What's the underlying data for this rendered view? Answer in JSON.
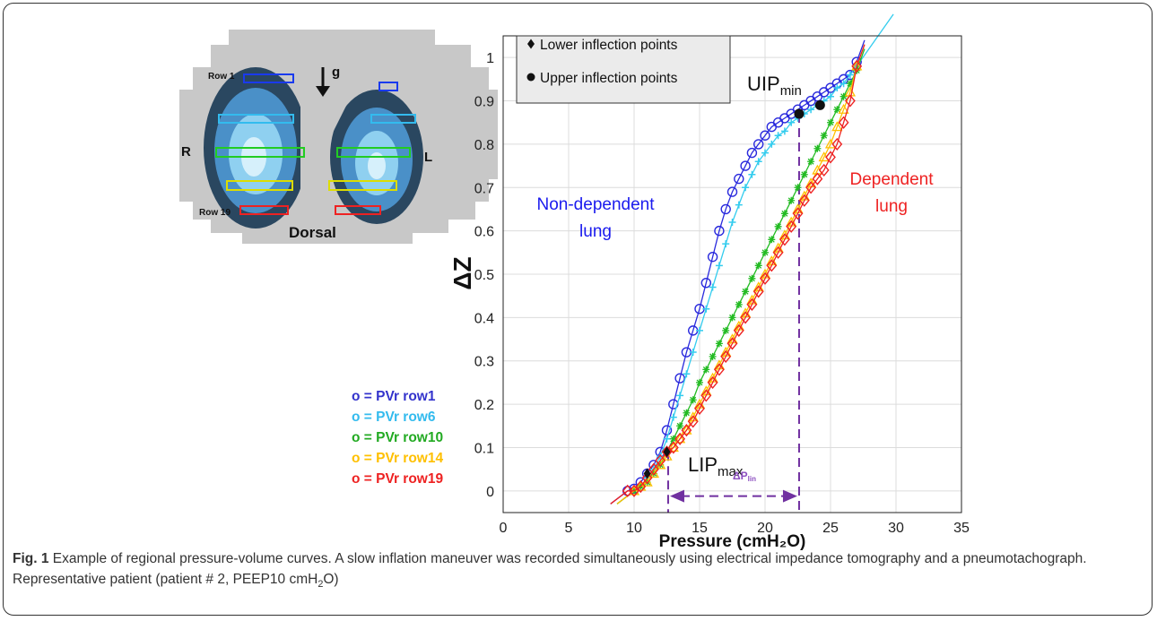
{
  "figure": {
    "caption_label": "Fig. 1",
    "caption_text": "Example of regional pressure-volume curves. A slow inflation maneuver was recorded simultaneously using electrical impedance tomography and a pneumotachograph. Representative patient (patient # 2, PEEP10 cmH",
    "caption_sub": "2",
    "caption_end": "O)"
  },
  "eit_image": {
    "label_row1": "Row 1",
    "label_row19": "Row 19",
    "label_gravity": "g",
    "label_right": "R",
    "label_left": "L",
    "label_dorsal": "Dorsal"
  },
  "legend_rows": [
    {
      "text": "o = PVr row1",
      "color": "#3333cc"
    },
    {
      "text": "o = PVr row6",
      "color": "#33bbee"
    },
    {
      "text": "o = PVr row10",
      "color": "#22aa22"
    },
    {
      "text": "o = PVr row14",
      "color": "#ffc000"
    },
    {
      "text": "o = PVr row19",
      "color": "#ee2222"
    }
  ],
  "chart_data": {
    "type": "scatter",
    "xlabel": "Pressure (cmH₂O)",
    "ylabel": "ΔZ",
    "xlim": [
      0,
      35
    ],
    "ylim": [
      -0.05,
      1.05
    ],
    "xticks": [
      "0",
      "5",
      "10",
      "15",
      "20",
      "25",
      "30",
      "35"
    ],
    "yticks": [
      "0",
      "0.1",
      "0.2",
      "0.3",
      "0.4",
      "0.5",
      "0.6",
      "0.7",
      "0.8",
      "0.9",
      "1"
    ],
    "grid": true,
    "legend": {
      "placement": "top-left",
      "entries": [
        "Lower inflection points",
        "Upper inflection points"
      ]
    },
    "series": [
      {
        "name": "PVr row1",
        "color": "#2a2add",
        "marker": "circle",
        "x": [
          9.5,
          10,
          10.5,
          11,
          11.5,
          12,
          12.5,
          13,
          13.5,
          14,
          14.5,
          15,
          15.5,
          16,
          16.5,
          17,
          17.5,
          18,
          18.5,
          19,
          19.5,
          20,
          20.5,
          21,
          21.5,
          22,
          22.5,
          23,
          23.5,
          24,
          24.5,
          25,
          25.5,
          26,
          26.5,
          27
        ],
        "y": [
          0,
          0.005,
          0.02,
          0.04,
          0.06,
          0.09,
          0.14,
          0.2,
          0.26,
          0.32,
          0.37,
          0.42,
          0.48,
          0.54,
          0.6,
          0.65,
          0.69,
          0.72,
          0.75,
          0.78,
          0.8,
          0.82,
          0.84,
          0.85,
          0.86,
          0.87,
          0.88,
          0.89,
          0.9,
          0.91,
          0.92,
          0.93,
          0.94,
          0.95,
          0.96,
          0.99
        ]
      },
      {
        "name": "PVr row6",
        "color": "#33ccee",
        "marker": "plus",
        "x": [
          10,
          10.5,
          11,
          11.5,
          12,
          12.5,
          13,
          13.5,
          14,
          14.5,
          15,
          15.5,
          16,
          16.5,
          17,
          17.5,
          18,
          18.5,
          19,
          19.5,
          20,
          20.5,
          21,
          21.5,
          22,
          22.5,
          23,
          23.5,
          24,
          24.5,
          25,
          25.5,
          26,
          26.5,
          27
        ],
        "y": [
          0,
          0.01,
          0.03,
          0.05,
          0.08,
          0.12,
          0.17,
          0.22,
          0.27,
          0.32,
          0.37,
          0.42,
          0.47,
          0.52,
          0.57,
          0.62,
          0.66,
          0.7,
          0.73,
          0.76,
          0.78,
          0.8,
          0.82,
          0.83,
          0.85,
          0.86,
          0.87,
          0.88,
          0.89,
          0.9,
          0.91,
          0.93,
          0.94,
          0.96,
          0.98
        ]
      },
      {
        "name": "PVr row10",
        "color": "#22bb22",
        "marker": "asterisk",
        "x": [
          10,
          10.5,
          11,
          11.5,
          12,
          12.5,
          13,
          13.5,
          14,
          14.5,
          15,
          15.5,
          16,
          16.5,
          17,
          17.5,
          18,
          18.5,
          19,
          19.5,
          20,
          20.5,
          21,
          21.5,
          22,
          22.5,
          23,
          23.5,
          24,
          24.5,
          25,
          25.5,
          26,
          26.5,
          27
        ],
        "y": [
          0,
          0.01,
          0.02,
          0.04,
          0.06,
          0.09,
          0.12,
          0.15,
          0.18,
          0.21,
          0.25,
          0.28,
          0.31,
          0.34,
          0.37,
          0.4,
          0.43,
          0.46,
          0.49,
          0.52,
          0.55,
          0.58,
          0.61,
          0.64,
          0.67,
          0.7,
          0.73,
          0.76,
          0.79,
          0.82,
          0.85,
          0.88,
          0.91,
          0.94,
          0.97
        ]
      },
      {
        "name": "PVr row14",
        "color": "#ffc000",
        "marker": "triangle",
        "x": [
          10,
          10.5,
          11,
          11.5,
          12,
          12.5,
          13,
          13.5,
          14,
          14.5,
          15,
          15.5,
          16,
          16.5,
          17,
          17.5,
          18,
          18.5,
          19,
          19.5,
          20,
          20.5,
          21,
          21.5,
          22,
          22.5,
          23,
          23.5,
          24,
          24.5,
          25,
          25.5,
          26,
          26.5,
          27
        ],
        "y": [
          0,
          0.01,
          0.02,
          0.04,
          0.06,
          0.08,
          0.1,
          0.12,
          0.14,
          0.17,
          0.2,
          0.23,
          0.26,
          0.29,
          0.32,
          0.35,
          0.38,
          0.41,
          0.44,
          0.47,
          0.5,
          0.53,
          0.56,
          0.59,
          0.62,
          0.65,
          0.68,
          0.71,
          0.74,
          0.77,
          0.8,
          0.84,
          0.88,
          0.92,
          0.98
        ]
      },
      {
        "name": "PVr row19",
        "color": "#ee2222",
        "marker": "diamond",
        "x": [
          9.5,
          10,
          10.5,
          11,
          11.5,
          12,
          12.5,
          13,
          13.5,
          14,
          14.5,
          15,
          15.5,
          16,
          16.5,
          17,
          17.5,
          18,
          18.5,
          19,
          19.5,
          20,
          20.5,
          21,
          21.5,
          22,
          22.5,
          23,
          23.5,
          24,
          24.5,
          25,
          25.5,
          26,
          26.5,
          27
        ],
        "y": [
          0,
          0,
          0.01,
          0.03,
          0.05,
          0.07,
          0.09,
          0.1,
          0.12,
          0.14,
          0.16,
          0.19,
          0.22,
          0.25,
          0.28,
          0.31,
          0.34,
          0.37,
          0.4,
          0.43,
          0.46,
          0.49,
          0.52,
          0.55,
          0.58,
          0.61,
          0.64,
          0.67,
          0.7,
          0.72,
          0.74,
          0.77,
          0.8,
          0.85,
          0.9,
          0.98
        ]
      }
    ],
    "lower_inflection_points": [
      {
        "x": 11,
        "y": 0.04
      },
      {
        "x": 12.5,
        "y": 0.09
      }
    ],
    "upper_inflection_points": [
      {
        "x": 22.6,
        "y": 0.87
      },
      {
        "x": 24.2,
        "y": 0.89
      }
    ],
    "annotations": {
      "uip": {
        "text": "UIP",
        "sub": "min"
      },
      "lip": {
        "text": "LIP",
        "sub": "max"
      },
      "delta_p": {
        "text": "ΔP",
        "sub": "lin"
      },
      "nondependent": [
        "Non-dependent",
        "lung"
      ],
      "dependent": [
        "Dependent",
        "lung"
      ]
    },
    "lip_line_x": 12.6,
    "uip_line_x": 22.6
  }
}
